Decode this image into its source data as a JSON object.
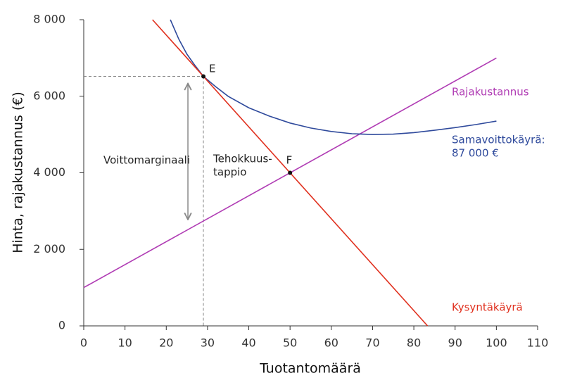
{
  "chart_data": {
    "type": "line",
    "xlabel": "Tuotantomäärä",
    "ylabel": "Hinta, rajakustannus (€)",
    "xlim": [
      0,
      110
    ],
    "xticks": [
      0,
      10,
      20,
      30,
      40,
      50,
      60,
      70,
      80,
      90,
      100,
      110
    ],
    "ylim": [
      0,
      8000
    ],
    "yticks": [
      0,
      {
        "value": 2000,
        "label": "2 000"
      },
      {
        "value": 4000,
        "label": "4 000"
      },
      {
        "value": 6000,
        "label": "6 000"
      },
      {
        "value": 8000,
        "label": "8 000"
      }
    ],
    "series": [
      {
        "name": "Rajakustannus",
        "color": "#b03cb4",
        "x": [
          0,
          100
        ],
        "values": [
          1000,
          7000
        ]
      },
      {
        "name": [
          "Samavoittokäyrä:",
          "87 000 €"
        ],
        "color": "#2f4a9c",
        "x": [
          21,
          23,
          25,
          27,
          29,
          32,
          35,
          40,
          45,
          50,
          55,
          60,
          65,
          70,
          75,
          80,
          85,
          90,
          95,
          100
        ],
        "values": [
          8000,
          7500,
          7100,
          6800,
          6520,
          6250,
          6000,
          5700,
          5480,
          5300,
          5170,
          5080,
          5020,
          5000,
          5010,
          5050,
          5110,
          5180,
          5260,
          5350
        ]
      },
      {
        "name": "Kysyntäkäyrä",
        "color": "#e0301e",
        "x": [
          16.67,
          83.33
        ],
        "values": [
          8000,
          0
        ]
      }
    ],
    "points": [
      {
        "label": "E",
        "x": 29,
        "y": 6520
      },
      {
        "label": "F",
        "x": 50,
        "y": 4000
      }
    ],
    "annotations": [
      {
        "lines": [
          "Voittomarginaali"
        ]
      },
      {
        "lines": [
          "Tehokkuus-",
          "tappio"
        ]
      }
    ]
  }
}
